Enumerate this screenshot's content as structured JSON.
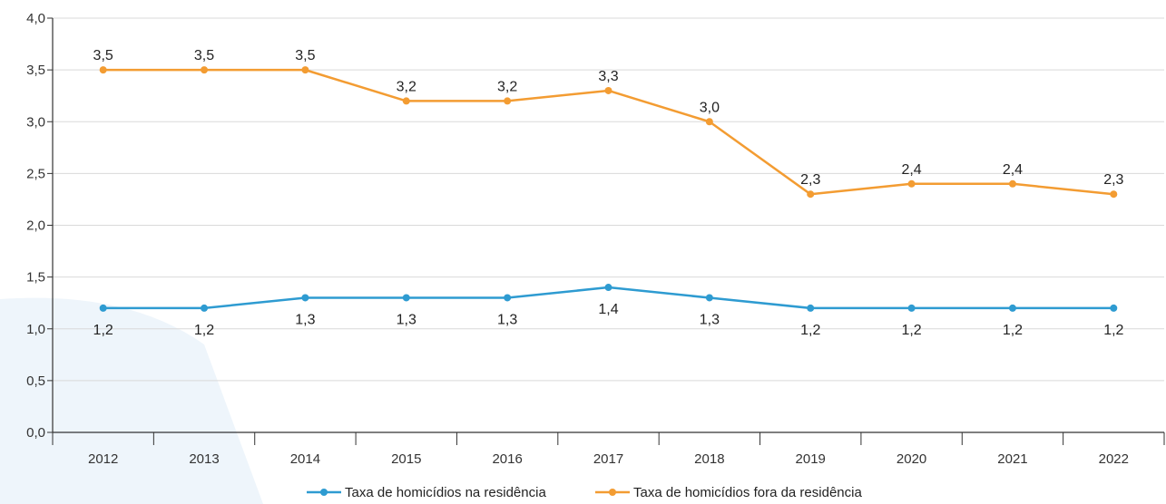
{
  "chart_data": {
    "type": "line",
    "categories": [
      "2012",
      "2013",
      "2014",
      "2015",
      "2016",
      "2017",
      "2018",
      "2019",
      "2020",
      "2021",
      "2022"
    ],
    "series": [
      {
        "name": "Taxa de homicídios na residência",
        "values": [
          1.2,
          1.2,
          1.3,
          1.3,
          1.3,
          1.4,
          1.3,
          1.2,
          1.2,
          1.2,
          1.2
        ],
        "labels": [
          "1,2",
          "1,2",
          "1,3",
          "1,3",
          "1,3",
          "1,4",
          "1,3",
          "1,2",
          "1,2",
          "1,2",
          "1,2"
        ],
        "color": "#2e9bd1",
        "label_position": "below"
      },
      {
        "name": "Taxa de homicídios fora da residência",
        "values": [
          3.5,
          3.5,
          3.5,
          3.2,
          3.2,
          3.3,
          3.0,
          2.3,
          2.4,
          2.4,
          2.3
        ],
        "labels": [
          "3,5",
          "3,5",
          "3,5",
          "3,2",
          "3,2",
          "3,3",
          "3,0",
          "2,3",
          "2,4",
          "2,4",
          "2,3"
        ],
        "color": "#f39c32",
        "label_position": "above"
      }
    ],
    "ylim": [
      0,
      4
    ],
    "yticks": [
      0,
      0.5,
      1,
      1.5,
      2,
      2.5,
      3,
      3.5,
      4
    ],
    "ytick_labels": [
      "0,0",
      "0,5",
      "1,0",
      "1,5",
      "2,0",
      "2,5",
      "3,0",
      "3,5",
      "4,0"
    ],
    "grid": true,
    "legend_position": "bottom-center",
    "grid_color": "#d9d9d9",
    "axis_color": "#333333",
    "background_accent": "#eef5fb"
  }
}
